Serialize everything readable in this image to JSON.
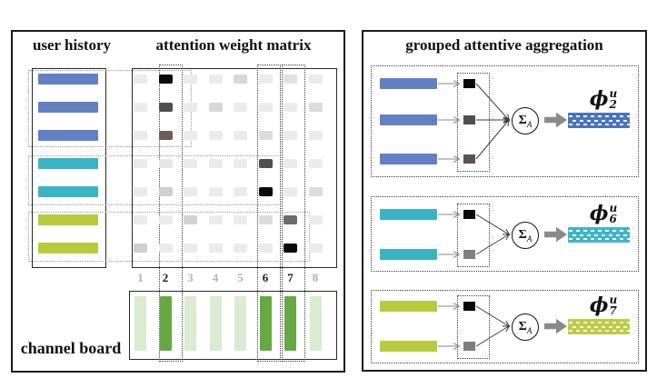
{
  "left_panel": {
    "user_history_title": "user history",
    "matrix_title": "attention weight matrix",
    "channel_board_label": "channel board",
    "user_history_bars": [
      {
        "group": "blue",
        "color": "#6280c4"
      },
      {
        "group": "blue",
        "color": "#6280c4"
      },
      {
        "group": "blue",
        "color": "#6280c4"
      },
      {
        "group": "teal",
        "color": "#3ab4c3"
      },
      {
        "group": "teal",
        "color": "#3ab4c3"
      },
      {
        "group": "lime",
        "color": "#b9cb3d"
      },
      {
        "group": "lime",
        "color": "#b9cb3d"
      }
    ],
    "attention_matrix_rows": [
      [
        "#ebebeb",
        "#0a0a0a",
        "#ebebeb",
        "#ebebeb",
        "#d8d8d8",
        "#ebebeb",
        "#e2e2e2",
        "#ebebeb"
      ],
      [
        "#ebebeb",
        "#4f4f4f",
        "#ebebeb",
        "#d8d8d8",
        "#ebebeb",
        "#ebebeb",
        "#ebebeb",
        "#dcdcdc"
      ],
      [
        "#ebebeb",
        "#6b5d5d",
        "#ebebeb",
        "#ebebeb",
        "#ebebeb",
        "#dcdcdc",
        "#ebebeb",
        "#ebebeb"
      ],
      [
        "#ebebeb",
        "#e6e6e6",
        "#ebebeb",
        "#ebebeb",
        "#ebebeb",
        "#4f4f4f",
        "#ebebeb",
        "#ebebeb"
      ],
      [
        "#ebebeb",
        "#cfcfcf",
        "#ebebeb",
        "#ebebeb",
        "#ebebeb",
        "#0a0a0a",
        "#ebebeb",
        "#dcdcdc"
      ],
      [
        "#ebebeb",
        "#ebebeb",
        "#d3d3d3",
        "#ebebeb",
        "#ebebeb",
        "#dcdcdc",
        "#6b6b6b",
        "#ebebeb"
      ],
      [
        "#cfcfcf",
        "#ebebeb",
        "#ebebeb",
        "#ebebeb",
        "#ebebeb",
        "#ebebeb",
        "#0a0a0a",
        "#ebebeb"
      ]
    ],
    "channels": [
      {
        "number": "1",
        "highlighted": false
      },
      {
        "number": "2",
        "highlighted": true
      },
      {
        "number": "3",
        "highlighted": false
      },
      {
        "number": "4",
        "highlighted": false
      },
      {
        "number": "5",
        "highlighted": false
      },
      {
        "number": "6",
        "highlighted": true
      },
      {
        "number": "7",
        "highlighted": true
      },
      {
        "number": "8",
        "highlighted": false
      }
    ],
    "channel_bar_colors": {
      "active": "#68a844",
      "inactive": "#daebd2"
    },
    "channel_number_colors": {
      "active": "#1a1a1a",
      "inactive": "#b3b3b3"
    }
  },
  "right_panel": {
    "title": "grouped attentive aggregation",
    "aggregator": {
      "symbol": "Σ",
      "subscript": "A"
    },
    "groups": [
      {
        "phi_base": "ϕ",
        "phi_sup": "u",
        "phi_sub": "2",
        "group": "blue",
        "bar_color": "#6280c4",
        "result_color": "#4a74c4",
        "weight_colors": [
          "#0a0a0a",
          "#4f4f4f",
          "#5c5252"
        ]
      },
      {
        "phi_base": "ϕ",
        "phi_sup": "u",
        "phi_sub": "6",
        "group": "teal",
        "bar_color": "#3ab4c3",
        "result_color": "#3fb6c6",
        "weight_colors": [
          "#0a0a0a",
          "#7f7f7f"
        ]
      },
      {
        "phi_base": "ϕ",
        "phi_sup": "u",
        "phi_sub": "7",
        "group": "lime",
        "bar_color": "#b9cb3d",
        "result_color": "#bccd45",
        "weight_colors": [
          "#0a0a0a",
          "#7f7f7f"
        ]
      }
    ]
  }
}
